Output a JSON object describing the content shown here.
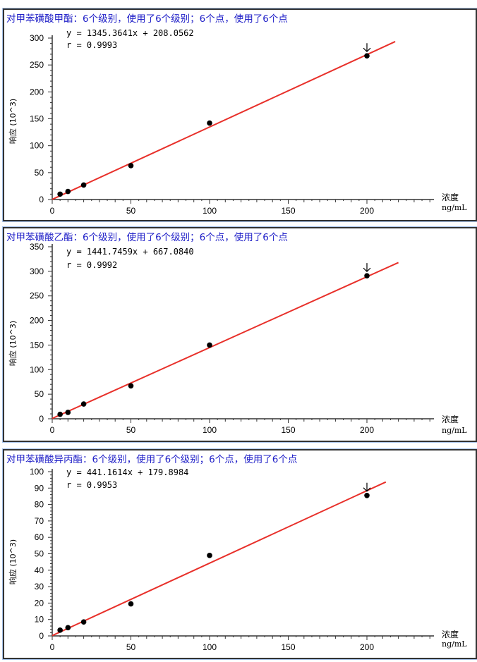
{
  "chart_data": [
    {
      "type": "scatter",
      "title": "对甲苯磺酸甲酯：6个级别，使用了6个级别；6个点，使用了6个点",
      "equation": "y = 1345.3641x + 208.0562",
      "r": "r = 0.9993",
      "slope": 1.3453641,
      "intercept": 0.2080562,
      "xlabel": "浓度",
      "xunit": "ng/mL",
      "ylabel": "响应 (10^3)",
      "x": [
        5,
        10,
        20,
        50,
        100,
        200
      ],
      "y": [
        10,
        15,
        27,
        63,
        142,
        267
      ],
      "xlim": [
        0,
        240
      ],
      "ylim": [
        0,
        300
      ],
      "xticks": [
        0,
        50,
        100,
        150,
        200
      ],
      "yticks": [
        0,
        50,
        100,
        150,
        200,
        250,
        300
      ],
      "fit_xmax": 218,
      "marked_point": 200,
      "line_color": "#e8302a"
    },
    {
      "type": "scatter",
      "title": "对甲苯磺酸乙酯：6个级别，使用了6个级别；6个点，使用了6个点",
      "equation": "y = 1441.7459x + 667.0840",
      "r": "r = 0.9992",
      "slope": 1.4417459,
      "intercept": 0.667084,
      "xlabel": "浓度",
      "xunit": "ng/mL",
      "ylabel": "响应 (10^3)",
      "x": [
        5,
        10,
        20,
        50,
        100,
        200
      ],
      "y": [
        9,
        13,
        30,
        67,
        150,
        291
      ],
      "xlim": [
        0,
        240
      ],
      "ylim": [
        0,
        350
      ],
      "xticks": [
        0,
        50,
        100,
        150,
        200
      ],
      "yticks": [
        0,
        50,
        100,
        150,
        200,
        250,
        300,
        350
      ],
      "fit_xmax": 220,
      "marked_point": 200,
      "line_color": "#e8302a"
    },
    {
      "type": "scatter",
      "title": "对甲苯磺酸异丙酯：6个级别，使用了6个级别；6个点，使用了6个点",
      "equation": "y = 441.1614x + 179.8984",
      "r": "r = 0.9953",
      "slope": 0.4411614,
      "intercept": 0.1798984,
      "xlabel": "浓度",
      "xunit": "ng/mL",
      "ylabel": "响应 (10^3)",
      "x": [
        5,
        10,
        20,
        50,
        100,
        200
      ],
      "y": [
        3.5,
        5,
        8.5,
        19.5,
        49,
        85.5
      ],
      "xlim": [
        0,
        240
      ],
      "ylim": [
        0,
        100
      ],
      "xticks": [
        0,
        50,
        100,
        150,
        200
      ],
      "yticks": [
        0,
        10,
        20,
        30,
        40,
        50,
        60,
        70,
        80,
        90,
        100
      ],
      "fit_xmax": 212,
      "marked_point": 200,
      "line_color": "#e8302a"
    }
  ]
}
